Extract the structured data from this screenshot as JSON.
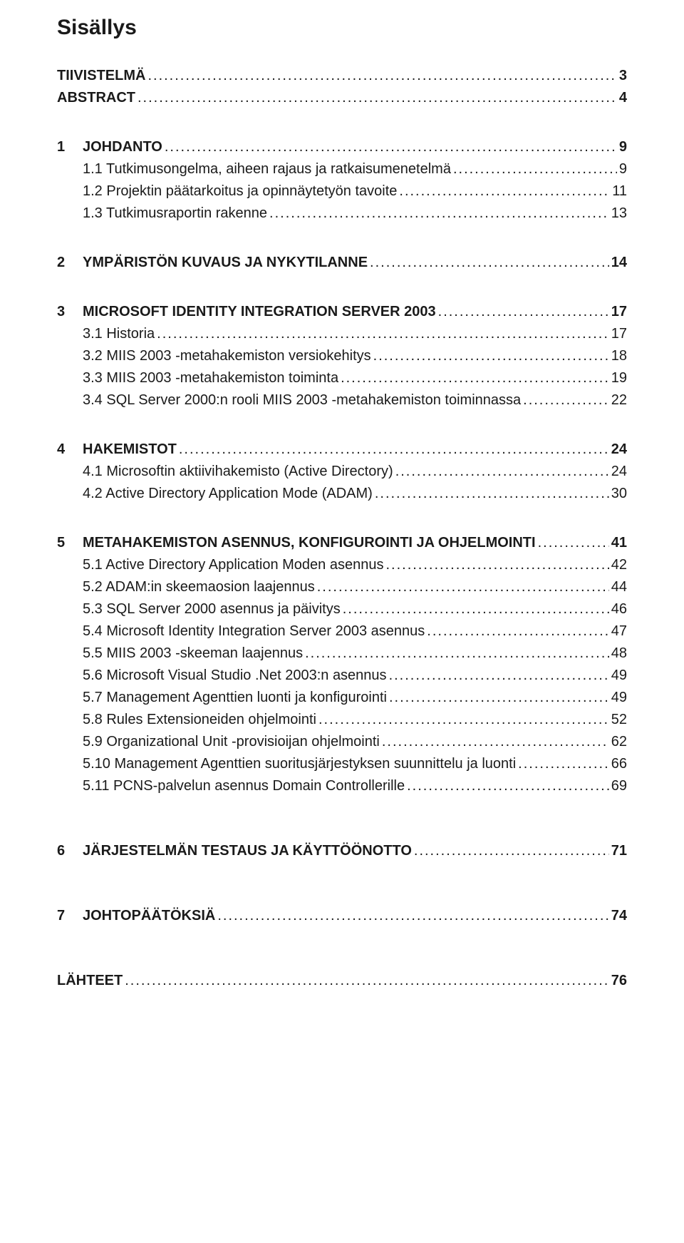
{
  "title": "Sisällys",
  "font": {
    "body_size_pt": 15,
    "title_size_pt": 22
  },
  "colors": {
    "text": "#1a1a1a",
    "background": "#ffffff"
  },
  "entries": [
    {
      "num": "",
      "label": "TIIVISTELMÄ",
      "page": "3",
      "bold": true,
      "sub": false,
      "gap_after": "none"
    },
    {
      "num": "",
      "label": "ABSTRACT",
      "page": "4",
      "bold": true,
      "sub": false,
      "gap_after": "md"
    },
    {
      "num": "1",
      "label": "JOHDANTO",
      "page": "9",
      "bold": true,
      "sub": false,
      "gap_after": "none"
    },
    {
      "num": "",
      "label": "1.1 Tutkimusongelma, aiheen rajaus ja ratkaisumenetelmä",
      "page": "9",
      "bold": false,
      "sub": true,
      "gap_after": "none"
    },
    {
      "num": "",
      "label": "1.2 Projektin päätarkoitus ja opinnäytetyön tavoite",
      "page": " 11",
      "bold": false,
      "sub": true,
      "gap_after": "none"
    },
    {
      "num": "",
      "label": "1.3 Tutkimusraportin rakenne",
      "page": "13",
      "bold": false,
      "sub": true,
      "gap_after": "md"
    },
    {
      "num": "2",
      "label": "YMPÄRISTÖN KUVAUS JA NYKYTILANNE",
      "page": "14",
      "bold": true,
      "sub": false,
      "gap_after": "md"
    },
    {
      "num": "3",
      "label": "MICROSOFT IDENTITY INTEGRATION SERVER 2003",
      "page": "17",
      "bold": true,
      "sub": false,
      "gap_after": "none"
    },
    {
      "num": "",
      "label": "3.1 Historia",
      "page": "17",
      "bold": false,
      "sub": true,
      "gap_after": "none"
    },
    {
      "num": "",
      "label": "3.2 MIIS 2003 -metahakemiston versiokehitys",
      "page": "18",
      "bold": false,
      "sub": true,
      "gap_after": "none"
    },
    {
      "num": "",
      "label": "3.3 MIIS 2003 -metahakemiston toiminta",
      "page": "19",
      "bold": false,
      "sub": true,
      "gap_after": "none"
    },
    {
      "num": "",
      "label": "3.4 SQL Server 2000:n rooli MIIS 2003 -metahakemiston toiminnassa",
      "page": "22",
      "bold": false,
      "sub": true,
      "gap_after": "md"
    },
    {
      "num": "4",
      "label": "HAKEMISTOT",
      "page": "24",
      "bold": true,
      "sub": false,
      "gap_after": "none"
    },
    {
      "num": "",
      "label": "4.1 Microsoftin aktiivihakemisto (Active Directory)",
      "page": "24",
      "bold": false,
      "sub": true,
      "gap_after": "none"
    },
    {
      "num": "",
      "label": "4.2 Active Directory Application Mode (ADAM)",
      "page": "30",
      "bold": false,
      "sub": true,
      "gap_after": "md"
    },
    {
      "num": "5",
      "label": "METAHAKEMISTON ASENNUS, KONFIGUROINTI JA OHJELMOINTI",
      "page": "41",
      "bold": true,
      "sub": false,
      "gap_after": "none"
    },
    {
      "num": "",
      "label": "5.1 Active Directory Application Moden asennus",
      "page": "42",
      "bold": false,
      "sub": true,
      "gap_after": "none"
    },
    {
      "num": "",
      "label": "5.2 ADAM:in skeemaosion laajennus",
      "page": "44",
      "bold": false,
      "sub": true,
      "gap_after": "none"
    },
    {
      "num": "",
      "label": "5.3 SQL Server 2000 asennus ja päivitys",
      "page": "46",
      "bold": false,
      "sub": true,
      "gap_after": "none"
    },
    {
      "num": "",
      "label": "5.4 Microsoft Identity Integration Server 2003 asennus",
      "page": "47",
      "bold": false,
      "sub": true,
      "gap_after": "none"
    },
    {
      "num": "",
      "label": "5.5 MIIS 2003 -skeeman laajennus",
      "page": "48",
      "bold": false,
      "sub": true,
      "gap_after": "none"
    },
    {
      "num": "",
      "label": "5.6 Microsoft Visual Studio .Net 2003:n asennus",
      "page": "49",
      "bold": false,
      "sub": true,
      "gap_after": "none"
    },
    {
      "num": "",
      "label": "5.7 Management Agenttien luonti ja konfigurointi",
      "page": "49",
      "bold": false,
      "sub": true,
      "gap_after": "none"
    },
    {
      "num": "",
      "label": "5.8 Rules Extensioneiden ohjelmointi",
      "page": "52",
      "bold": false,
      "sub": true,
      "gap_after": "none"
    },
    {
      "num": "",
      "label": "5.9 Organizational Unit -provisioijan ohjelmointi",
      "page": "62",
      "bold": false,
      "sub": true,
      "gap_after": "none"
    },
    {
      "num": "",
      "label": "5.10 Management Agenttien suoritusjärjestyksen suunnittelu ja luonti",
      "page": "66",
      "bold": false,
      "sub": true,
      "gap_after": "none"
    },
    {
      "num": "",
      "label": "5.11 PCNS-palvelun asennus Domain Controllerille",
      "page": "69",
      "bold": false,
      "sub": true,
      "gap_after": "lg"
    },
    {
      "num": "6",
      "label": "JÄRJESTELMÄN TESTAUS JA KÄYTTÖÖNOTTO",
      "page": "71",
      "bold": true,
      "sub": false,
      "gap_after": "lg"
    },
    {
      "num": "7",
      "label": "JOHTOPÄÄTÖKSIÄ",
      "page": "74",
      "bold": true,
      "sub": false,
      "gap_after": "lg"
    },
    {
      "num": "",
      "label": "LÄHTEET",
      "page": "76",
      "bold": true,
      "sub": false,
      "gap_after": "none"
    }
  ]
}
